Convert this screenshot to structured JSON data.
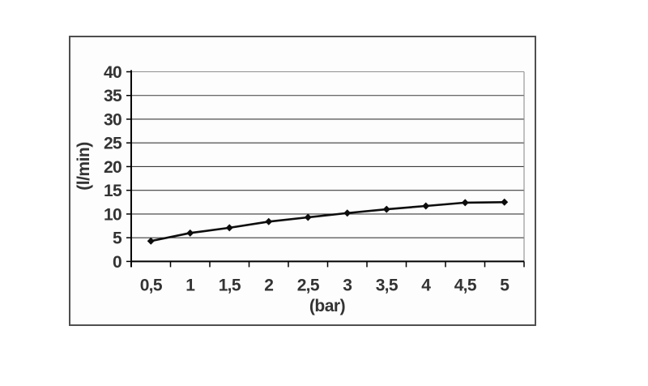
{
  "page": {
    "background": "#ffffff"
  },
  "frame": {
    "border_color": "#4f4f4f"
  },
  "chart_data": {
    "type": "line",
    "title": "",
    "categories": [
      "0,5",
      "1",
      "1,5",
      "2",
      "2,5",
      "3",
      "3,5",
      "4",
      "4,5",
      "5"
    ],
    "values": [
      4.3,
      6.0,
      7.1,
      8.4,
      9.3,
      10.2,
      11.0,
      11.7,
      12.4,
      12.5
    ],
    "xlabel": "(bar)",
    "ylabel": "(l/min)",
    "ylim": [
      0,
      40
    ],
    "yticks": [
      0,
      5,
      10,
      15,
      20,
      25,
      30,
      35,
      40
    ],
    "grid": "horizontal",
    "legend": "none",
    "marker": "diamond",
    "colors": {
      "series": "#0d0d0d",
      "gridline": "#3c3c3c",
      "axis": "#000000",
      "plot_border": "#8f8f8f",
      "text": "#333333"
    }
  }
}
